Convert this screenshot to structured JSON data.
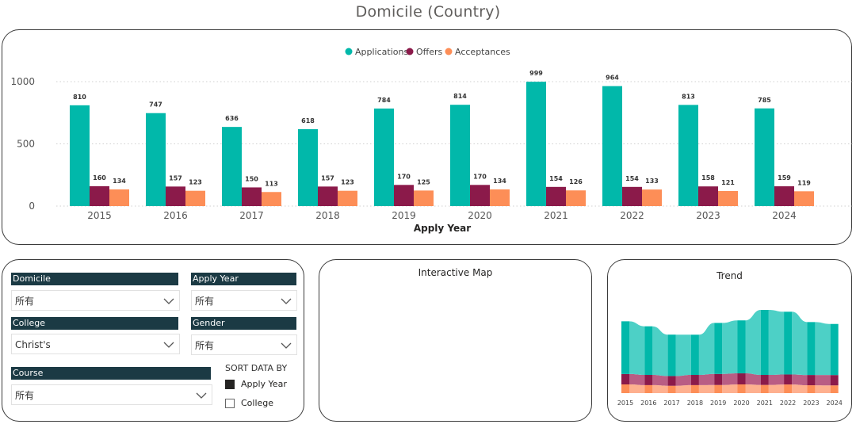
{
  "page": {
    "title": "Domicile (Country)"
  },
  "chart_data": {
    "type": "bar",
    "title": "",
    "xlabel": "Apply Year",
    "ylabel": "",
    "categories": [
      "2015",
      "2016",
      "2017",
      "2018",
      "2019",
      "2020",
      "2021",
      "2022",
      "2023",
      "2024"
    ],
    "series": [
      {
        "name": "Applications",
        "color": "#01b8aa",
        "values": [
          810,
          747,
          636,
          618,
          784,
          814,
          999,
          964,
          813,
          785
        ]
      },
      {
        "name": "Offers",
        "color": "#8b1a4a",
        "values": [
          160,
          157,
          150,
          157,
          170,
          170,
          154,
          154,
          158,
          159
        ]
      },
      {
        "name": "Acceptances",
        "color": "#fd8e57",
        "values": [
          134,
          123,
          113,
          123,
          125,
          134,
          126,
          133,
          121,
          119
        ]
      }
    ],
    "ylim": [
      0,
      1100
    ],
    "yticks": [
      0,
      500,
      1000
    ],
    "legend": "top-center"
  },
  "filters": {
    "domicile": {
      "label": "Domicile",
      "value": "所有"
    },
    "apply_year": {
      "label": "Apply Year",
      "value": "所有"
    },
    "college": {
      "label": "College",
      "value": "Christ's"
    },
    "gender": {
      "label": "Gender",
      "value": "所有"
    },
    "course": {
      "label": "Course",
      "value": "所有"
    },
    "sort": {
      "title": "SORT DATA BY",
      "options": [
        {
          "label": "Apply Year",
          "checked": true
        },
        {
          "label": "College",
          "checked": false
        }
      ]
    }
  },
  "map": {
    "title": "Interactive Map"
  },
  "trend": {
    "title": "Trend",
    "categories": [
      "2015",
      "2016",
      "2017",
      "2018",
      "2019",
      "2020",
      "2021",
      "2022",
      "2023",
      "2024"
    ]
  }
}
